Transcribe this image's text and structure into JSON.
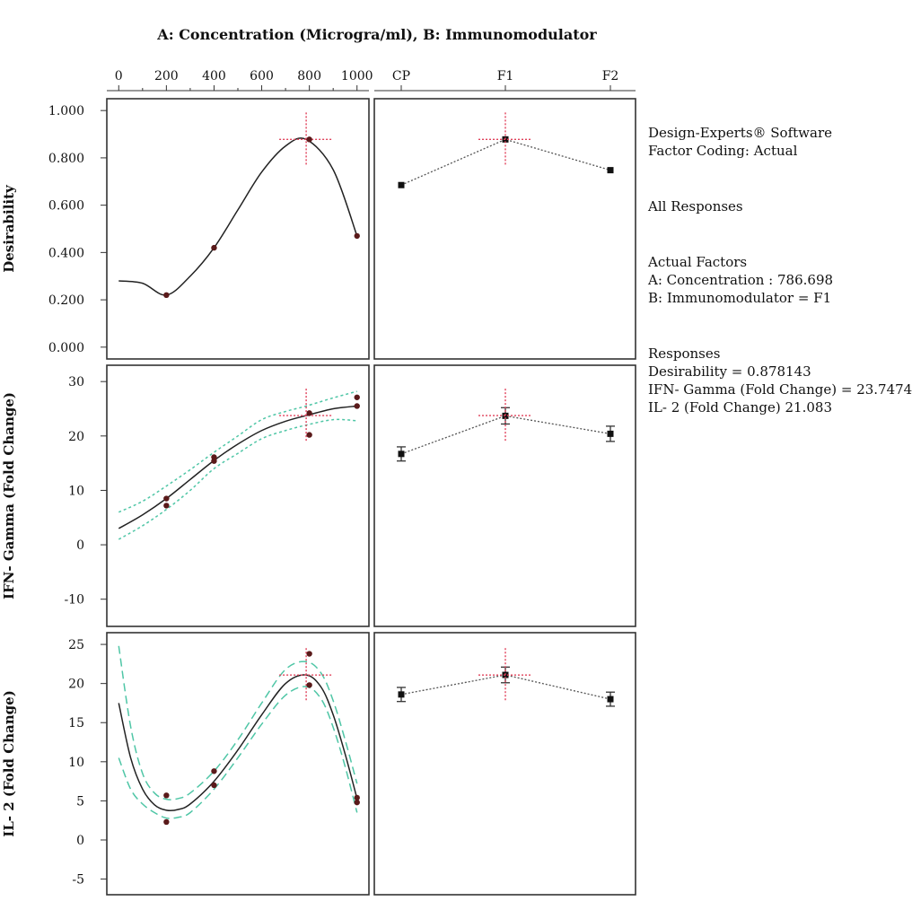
{
  "figure": {
    "top_title": "A: Concentration (Microgra/ml), B: Immunomodulator",
    "top_axis_numeric_ticks": [
      "0",
      "200",
      "400",
      "600",
      "800",
      "1000"
    ],
    "top_axis_categorical_ticks": [
      "CP",
      "F1",
      "F2"
    ]
  },
  "info": {
    "software": "Design-Experts® Software",
    "factor_coding": "Factor Coding: Actual",
    "all_responses": "All Responses",
    "actual_factors_title": "Actual Factors",
    "factor_a": "A: Concentration : 786.698",
    "factor_b": "B: Immunomodulator = F1",
    "responses_title": "Responses",
    "resp_desirability": "Desirability = 0.878143",
    "resp_ifn": "IFN- Gamma (Fold Change) = 23.7474",
    "resp_il2": "IL- 2 (Fold Change) 21.083"
  },
  "colors": {
    "curve": "#222222",
    "ci_band": "#4fc6a6",
    "crosshair": "#e0405a",
    "point": "#5a1a1a",
    "frame": "#333333"
  },
  "chart_data": [
    {
      "type": "line",
      "ylabel": "Desirability",
      "ylim": [
        -0.05,
        1.05
      ],
      "yticks": [
        "0.000",
        "0.200",
        "0.400",
        "0.600",
        "0.800",
        "1.000"
      ],
      "xlim": [
        -50,
        1050
      ],
      "curve": {
        "x": [
          0,
          100,
          200,
          300,
          400,
          500,
          600,
          700,
          786.698,
          900,
          1000
        ],
        "y": [
          0.28,
          0.27,
          0.22,
          0.3,
          0.42,
          0.58,
          0.74,
          0.85,
          0.878,
          0.75,
          0.47
        ]
      },
      "points": {
        "x": [
          200,
          400,
          800,
          1000
        ],
        "y": [
          0.22,
          0.42,
          0.878,
          0.47
        ]
      },
      "crosshair": {
        "x": 786.698,
        "y": 0.878
      },
      "categorical": {
        "categories": [
          "CP",
          "F1",
          "F2"
        ],
        "values": [
          0.685,
          0.878,
          0.748
        ]
      }
    },
    {
      "type": "line",
      "ylabel": "IFN- Gamma (Fold Change)",
      "ylim": [
        -15,
        33
      ],
      "yticks": [
        "-10",
        "0",
        "10",
        "20",
        "30"
      ],
      "xlim": [
        -50,
        1050
      ],
      "curve": {
        "x": [
          0,
          100,
          200,
          300,
          400,
          500,
          600,
          700,
          786.698,
          900,
          1000
        ],
        "y": [
          3,
          5.5,
          8.5,
          12,
          15.5,
          18.5,
          21,
          22.7,
          23.75,
          25,
          25.5
        ]
      },
      "lower_ci": [
        1,
        3.5,
        6.5,
        10,
        14,
        16.8,
        19.5,
        21.0,
        22,
        23,
        22.8
      ],
      "upper_ci": [
        6,
        8,
        10.8,
        13.8,
        17,
        20,
        23,
        24.5,
        25.5,
        27,
        28.2
      ],
      "points": {
        "x": [
          200,
          200,
          400,
          400,
          800,
          800,
          1000,
          1000
        ],
        "y": [
          8.5,
          7.2,
          16.1,
          15.4,
          24.2,
          20.2,
          27.1,
          25.5
        ]
      },
      "crosshair": {
        "x": 786.698,
        "y": 23.7474
      },
      "categorical": {
        "categories": [
          "CP",
          "F1",
          "F2"
        ],
        "values": [
          16.7,
          23.7,
          20.4
        ],
        "errors": [
          1.3,
          1.5,
          1.4
        ]
      }
    },
    {
      "type": "line",
      "ylabel": "IL- 2 (Fold Change)",
      "ylim": [
        -7,
        26.5
      ],
      "yticks": [
        "-5",
        "0",
        "5",
        "10",
        "15",
        "20",
        "25"
      ],
      "xlim": [
        -50,
        1050
      ],
      "curve": {
        "x": [
          0,
          50,
          100,
          150,
          200,
          250,
          300,
          400,
          500,
          600,
          700,
          786.698,
          850,
          900,
          950,
          1000
        ],
        "y": [
          17.5,
          10.5,
          6.5,
          4.5,
          3.8,
          3.9,
          4.6,
          7.5,
          11.5,
          16,
          20,
          21.1,
          19.5,
          16,
          11,
          5.3
        ]
      },
      "lower_ci": [
        10.5,
        6.5,
        4.6,
        3.5,
        2.8,
        2.9,
        3.5,
        6.5,
        10.5,
        14.8,
        18.5,
        19.6,
        18,
        14.4,
        9.4,
        3.5
      ],
      "upper_ci": [
        24.8,
        14.5,
        8.5,
        6.0,
        5.2,
        5.3,
        6.0,
        8.8,
        12.8,
        17.5,
        21.8,
        22.8,
        21.3,
        17.8,
        12.8,
        7.2
      ],
      "points": {
        "x": [
          200,
          200,
          400,
          400,
          800,
          800,
          1000,
          1000
        ],
        "y": [
          5.7,
          2.3,
          8.8,
          7.0,
          23.8,
          19.8,
          5.4,
          4.8
        ]
      },
      "crosshair": {
        "x": 786.698,
        "y": 21.083
      },
      "categorical": {
        "categories": [
          "CP",
          "F1",
          "F2"
        ],
        "values": [
          18.6,
          21.1,
          18.0
        ],
        "errors": [
          0.9,
          1.0,
          0.9
        ]
      }
    }
  ]
}
